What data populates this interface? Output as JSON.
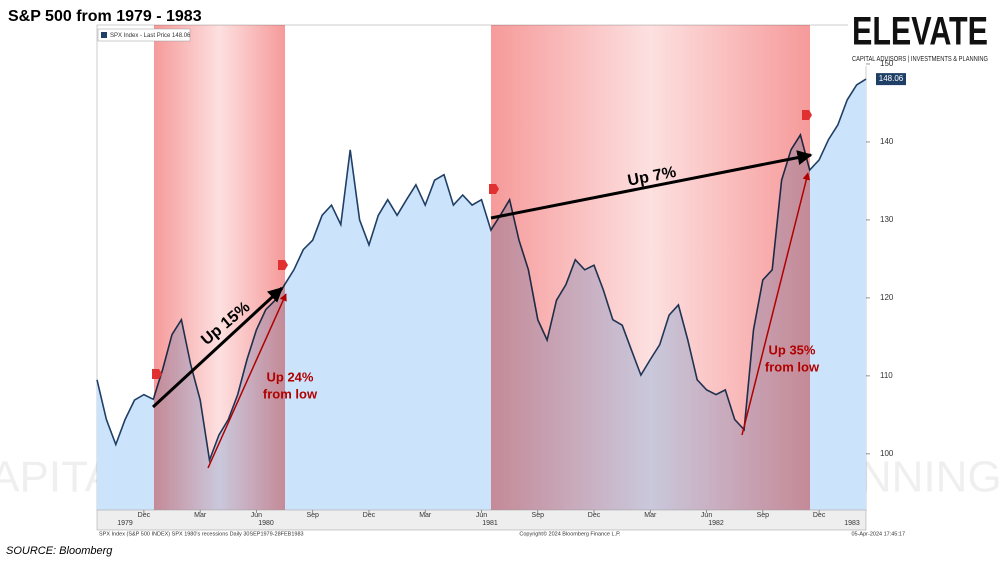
{
  "chart_data": {
    "type": "area",
    "title": "S&P 500 from 1979 - 1983",
    "source": "SOURCE: Bloomberg",
    "logo": {
      "name": "ELEVATE",
      "tagline": "CAPITAL ADVISORS | INVESTMENTS & PLANNING"
    },
    "footnotes": [
      "SPX Index (S&P 500 INDEX) SPX 1980's recessions  Daily 30SEP1979-28FEB1983",
      "Copyright© 2024 Bloomberg Finance L.P.",
      "05-Apr-2024 17:45:17"
    ],
    "years": [
      "1979",
      "1980",
      "1981",
      "1982",
      "1983"
    ],
    "categories": [
      null,
      null,
      null,
      null,
      null,
      "Dec",
      null,
      null,
      null,
      null,
      null,
      "Mar",
      null,
      null,
      null,
      null,
      null,
      "Jun",
      null,
      null,
      null,
      null,
      null,
      "Sep",
      null,
      null,
      null,
      null,
      null,
      "Dec",
      null,
      null,
      null,
      null,
      null,
      "Mar",
      null,
      null,
      null,
      null,
      null,
      "Jun",
      null,
      null,
      null,
      null,
      null,
      "Sep",
      null,
      null,
      null,
      null,
      null,
      "Dec",
      null,
      null,
      null,
      null,
      null,
      "Mar",
      null,
      null,
      null,
      null,
      null,
      "Jun",
      null,
      null,
      null,
      null,
      null,
      "Sep",
      null,
      null,
      null,
      null,
      null,
      "Dec",
      null,
      null,
      null,
      null,
      null
    ],
    "series": [
      {
        "name": "SPX Index - Last Price 148.06",
        "color": "#1f3f66",
        "fill": "#cce4fb",
        "values": [
          109.5,
          104.4,
          101.2,
          104.4,
          106.9,
          107.6,
          107,
          110.8,
          115.3,
          117.2,
          111.4,
          106.9,
          99.2,
          102.4,
          104.4,
          107.6,
          112.1,
          115.9,
          118.5,
          119.7,
          121.7,
          123.6,
          126.2,
          127.4,
          130.6,
          131.9,
          129.4,
          139.0,
          130.0,
          126.8,
          130.6,
          132.6,
          130.6,
          132.6,
          134.5,
          131.9,
          135.1,
          135.8,
          131.9,
          133.2,
          131.9,
          132.6,
          128.7,
          130.6,
          132.6,
          127.4,
          123.6,
          117.2,
          114.6,
          119.7,
          121.7,
          124.9,
          123.6,
          124.2,
          121.0,
          117.2,
          116.5,
          113.3,
          110.1,
          112.1,
          114.0,
          117.8,
          119.1,
          114.6,
          109.5,
          108.2,
          107.6,
          108.2,
          104.4,
          103.1,
          115.9,
          122.3,
          123.6,
          135.1,
          139.0,
          140.9,
          136.4,
          137.7,
          140.3,
          142.2,
          145.4,
          147.3,
          148.06
        ]
      }
    ],
    "ylim": [
      92.8,
      155
    ],
    "yticks": [
      100,
      110,
      120,
      130,
      140,
      150
    ],
    "annotations": [
      "Up 15%",
      "Up 24%",
      "from low",
      "Up 7%",
      "Up 35%",
      "from low"
    ]
  }
}
